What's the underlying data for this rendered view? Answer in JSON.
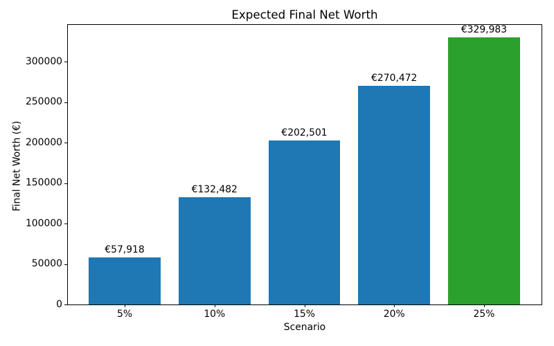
{
  "chart_data": {
    "type": "bar",
    "title": "Expected Final Net Worth",
    "xlabel": "Scenario",
    "ylabel": "Final Net Worth (€)",
    "categories": [
      "5%",
      "10%",
      "15%",
      "20%",
      "25%"
    ],
    "values": [
      57918,
      132482,
      202501,
      270472,
      329983
    ],
    "value_labels": [
      "€57,918",
      "€132,482",
      "€202,501",
      "€270,472",
      "€329,983"
    ],
    "bar_colors": [
      "#1f77b4",
      "#1f77b4",
      "#1f77b4",
      "#1f77b4",
      "#2ca02c"
    ],
    "yticks": [
      0,
      50000,
      100000,
      150000,
      200000,
      250000,
      300000
    ],
    "ylim": [
      0,
      346482
    ],
    "grid": false,
    "legend_position": "none",
    "background_color": "#ffffff",
    "axis_color": "#000000"
  }
}
